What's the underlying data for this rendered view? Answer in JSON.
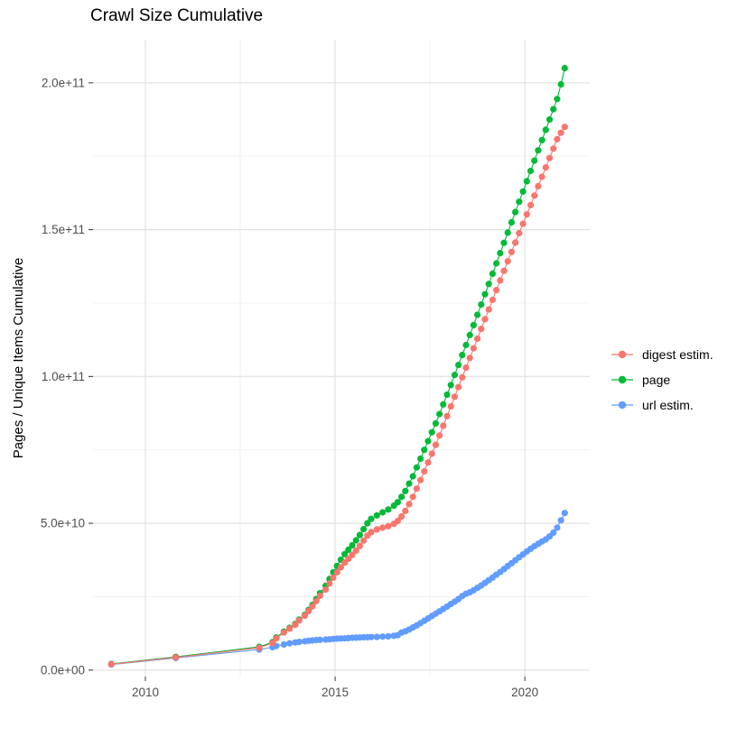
{
  "title": "Crawl Size Cumulative",
  "chart_data": {
    "type": "line",
    "title": "Crawl Size Cumulative",
    "xlabel": "",
    "ylabel": "Pages / Unique Items Cumulative",
    "grid": true,
    "background": "#ffffff",
    "major_grid_color": "#e3e3e3",
    "minor_grid_color": "#f0f0f0",
    "tick_color": "#333333",
    "tick_label_color": "#4d4d4d",
    "xlim": [
      2008.62,
      2021.71
    ],
    "ylim": [
      -2200000000.0,
      214700000000.0
    ],
    "x_ticks": {
      "values": [
        2010,
        2015,
        2020
      ],
      "labels": [
        "2010",
        "2015",
        "2020"
      ]
    },
    "x_minor_ticks": [
      2012.5,
      2017.5
    ],
    "y_ticks": {
      "values": [
        0,
        50000000000.0,
        100000000000.0,
        150000000000.0,
        200000000000.0
      ],
      "labels": [
        "0.0e+00",
        "5.0e+10",
        "1.0e+11",
        "1.5e+11",
        "2.0e+11"
      ]
    },
    "y_minor_ticks": [
      25000000000.0,
      75000000000.0,
      125000000000.0,
      175000000000.0
    ],
    "legend": {
      "position": "right",
      "entries": [
        {
          "label": "digest estim.",
          "color": "#F8766D"
        },
        {
          "label": "page",
          "color": "#00BA38"
        },
        {
          "label": "url estim.",
          "color": "#619CFF"
        }
      ]
    },
    "series": [
      {
        "name": "page",
        "color": "#00BA38",
        "points": [
          [
            2009.1,
            2100000000.0
          ],
          [
            2010.8,
            4500000000.0
          ],
          [
            2013.0,
            7900000000.0
          ],
          [
            2013.35,
            9500000000.0
          ],
          [
            2013.45,
            11100000000.0
          ],
          [
            2013.65,
            13100000000.0
          ],
          [
            2013.8,
            14400000000.0
          ],
          [
            2013.95,
            15700000000.0
          ],
          [
            2014.05,
            17200000000.0
          ],
          [
            2014.2,
            18800000000.0
          ],
          [
            2014.3,
            20500000000.0
          ],
          [
            2014.4,
            22200000000.0
          ],
          [
            2014.5,
            24200000000.0
          ],
          [
            2014.6,
            26200000000.0
          ],
          [
            2014.75,
            28700000000.0
          ],
          [
            2014.85,
            31000000000.0
          ],
          [
            2014.95,
            33300000000.0
          ],
          [
            2015.05,
            35500000000.0
          ],
          [
            2015.15,
            37600000000.0
          ],
          [
            2015.25,
            39500000000.0
          ],
          [
            2015.35,
            41000000000.0
          ],
          [
            2015.45,
            42500000000.0
          ],
          [
            2015.55,
            44200000000.0
          ],
          [
            2015.65,
            46000000000.0
          ],
          [
            2015.75,
            48000000000.0
          ],
          [
            2015.85,
            50000000000.0
          ],
          [
            2015.95,
            51500000000.0
          ],
          [
            2016.1,
            52700000000.0
          ],
          [
            2016.25,
            53700000000.0
          ],
          [
            2016.4,
            54700000000.0
          ],
          [
            2016.55,
            56000000000.0
          ],
          [
            2016.65,
            57200000000.0
          ],
          [
            2016.75,
            59000000000.0
          ],
          [
            2016.85,
            61000000000.0
          ],
          [
            2016.95,
            63500000000.0
          ],
          [
            2017.05,
            66000000000.0
          ],
          [
            2017.15,
            69000000000.0
          ],
          [
            2017.25,
            72000000000.0
          ],
          [
            2017.35,
            75000000000.0
          ],
          [
            2017.45,
            78000000000.0
          ],
          [
            2017.55,
            81000000000.0
          ],
          [
            2017.65,
            84000000000.0
          ],
          [
            2017.75,
            87200000000.0
          ],
          [
            2017.85,
            90500000000.0
          ],
          [
            2017.95,
            93800000000.0
          ],
          [
            2018.05,
            97100000000.0
          ],
          [
            2018.15,
            100500000000.0
          ],
          [
            2018.25,
            103900000000.0
          ],
          [
            2018.35,
            107300000000.0
          ],
          [
            2018.45,
            110700000000.0
          ],
          [
            2018.55,
            114100000000.0
          ],
          [
            2018.65,
            117500000000.0
          ],
          [
            2018.75,
            121000000000.0
          ],
          [
            2018.85,
            124500000000.0
          ],
          [
            2018.95,
            128000000000.0
          ],
          [
            2019.05,
            131500000000.0
          ],
          [
            2019.15,
            135000000000.0
          ],
          [
            2019.25,
            138500000000.0
          ],
          [
            2019.35,
            142000000000.0
          ],
          [
            2019.45,
            145500000000.0
          ],
          [
            2019.55,
            149000000000.0
          ],
          [
            2019.65,
            152500000000.0
          ],
          [
            2019.75,
            156000000000.0
          ],
          [
            2019.85,
            159500000000.0
          ],
          [
            2019.95,
            163000000000.0
          ],
          [
            2020.05,
            166500000000.0
          ],
          [
            2020.15,
            170000000000.0
          ],
          [
            2020.25,
            173500000000.0
          ],
          [
            2020.35,
            177000000000.0
          ],
          [
            2020.45,
            180500000000.0
          ],
          [
            2020.55,
            184000000000.0
          ],
          [
            2020.65,
            187500000000.0
          ],
          [
            2020.75,
            191000000000.0
          ],
          [
            2020.85,
            194500000000.0
          ],
          [
            2020.95,
            199500000000.0
          ],
          [
            2021.05,
            205000000000.0
          ]
        ]
      },
      {
        "name": "url estim.",
        "color": "#619CFF",
        "points": [
          [
            2009.1,
            1900000000.0
          ],
          [
            2010.8,
            4100000000.0
          ],
          [
            2013.0,
            7000000000.0
          ],
          [
            2013.35,
            7800000000.0
          ],
          [
            2013.45,
            8200000000.0
          ],
          [
            2013.65,
            8700000000.0
          ],
          [
            2013.8,
            9100000000.0
          ],
          [
            2013.95,
            9400000000.0
          ],
          [
            2014.05,
            9600000000.0
          ],
          [
            2014.2,
            9800000000.0
          ],
          [
            2014.3,
            10000000000.0
          ],
          [
            2014.4,
            10100000000.0
          ],
          [
            2014.5,
            10200000000.0
          ],
          [
            2014.6,
            10300000000.0
          ],
          [
            2014.75,
            10400000000.0
          ],
          [
            2014.85,
            10500000000.0
          ],
          [
            2014.95,
            10600000000.0
          ],
          [
            2015.05,
            10700000000.0
          ],
          [
            2015.15,
            10750000000.0
          ],
          [
            2015.25,
            10800000000.0
          ],
          [
            2015.35,
            10900000000.0
          ],
          [
            2015.45,
            11000000000.0
          ],
          [
            2015.55,
            11050000000.0
          ],
          [
            2015.65,
            11100000000.0
          ],
          [
            2015.75,
            11150000000.0
          ],
          [
            2015.85,
            11200000000.0
          ],
          [
            2015.95,
            11250000000.0
          ],
          [
            2016.1,
            11300000000.0
          ],
          [
            2016.25,
            11400000000.0
          ],
          [
            2016.4,
            11500000000.0
          ],
          [
            2016.55,
            11700000000.0
          ],
          [
            2016.65,
            11900000000.0
          ],
          [
            2016.75,
            12800000000.0
          ],
          [
            2016.85,
            13200000000.0
          ],
          [
            2016.95,
            13800000000.0
          ],
          [
            2017.05,
            14500000000.0
          ],
          [
            2017.15,
            15200000000.0
          ],
          [
            2017.25,
            16000000000.0
          ],
          [
            2017.35,
            16800000000.0
          ],
          [
            2017.45,
            17600000000.0
          ],
          [
            2017.55,
            18400000000.0
          ],
          [
            2017.65,
            19200000000.0
          ],
          [
            2017.75,
            20000000000.0
          ],
          [
            2017.85,
            20800000000.0
          ],
          [
            2017.95,
            21600000000.0
          ],
          [
            2018.05,
            22500000000.0
          ],
          [
            2018.15,
            23300000000.0
          ],
          [
            2018.25,
            24200000000.0
          ],
          [
            2018.35,
            25200000000.0
          ],
          [
            2018.45,
            26000000000.0
          ],
          [
            2018.55,
            26500000000.0
          ],
          [
            2018.65,
            27200000000.0
          ],
          [
            2018.75,
            28000000000.0
          ],
          [
            2018.85,
            28800000000.0
          ],
          [
            2018.95,
            29700000000.0
          ],
          [
            2019.05,
            30600000000.0
          ],
          [
            2019.15,
            31500000000.0
          ],
          [
            2019.25,
            32500000000.0
          ],
          [
            2019.35,
            33400000000.0
          ],
          [
            2019.45,
            34400000000.0
          ],
          [
            2019.55,
            35400000000.0
          ],
          [
            2019.65,
            36400000000.0
          ],
          [
            2019.75,
            37400000000.0
          ],
          [
            2019.85,
            38400000000.0
          ],
          [
            2019.95,
            39400000000.0
          ],
          [
            2020.05,
            40400000000.0
          ],
          [
            2020.15,
            41300000000.0
          ],
          [
            2020.25,
            42200000000.0
          ],
          [
            2020.35,
            43000000000.0
          ],
          [
            2020.45,
            43800000000.0
          ],
          [
            2020.55,
            44500000000.0
          ],
          [
            2020.65,
            45500000000.0
          ],
          [
            2020.75,
            46800000000.0
          ],
          [
            2020.85,
            48500000000.0
          ],
          [
            2020.95,
            51000000000.0
          ],
          [
            2021.05,
            53500000000.0
          ]
        ]
      },
      {
        "name": "digest estim.",
        "color": "#F8766D",
        "points": [
          [
            2009.1,
            2000000000.0
          ],
          [
            2010.8,
            4300000000.0
          ],
          [
            2013.0,
            7600000000.0
          ],
          [
            2013.35,
            9200000000.0
          ],
          [
            2013.45,
            10800000000.0
          ],
          [
            2013.65,
            12800000000.0
          ],
          [
            2013.8,
            14100000000.0
          ],
          [
            2013.95,
            15400000000.0
          ],
          [
            2014.05,
            16900000000.0
          ],
          [
            2014.2,
            18500000000.0
          ],
          [
            2014.3,
            20100000000.0
          ],
          [
            2014.4,
            21700000000.0
          ],
          [
            2014.5,
            23500000000.0
          ],
          [
            2014.6,
            25300000000.0
          ],
          [
            2014.75,
            27400000000.0
          ],
          [
            2014.85,
            29500000000.0
          ],
          [
            2014.95,
            31500000000.0
          ],
          [
            2015.05,
            33300000000.0
          ],
          [
            2015.15,
            35000000000.0
          ],
          [
            2015.25,
            36600000000.0
          ],
          [
            2015.35,
            37900000000.0
          ],
          [
            2015.45,
            39200000000.0
          ],
          [
            2015.55,
            40700000000.0
          ],
          [
            2015.65,
            42300000000.0
          ],
          [
            2015.75,
            44100000000.0
          ],
          [
            2015.85,
            45800000000.0
          ],
          [
            2015.95,
            47000000000.0
          ],
          [
            2016.1,
            47900000000.0
          ],
          [
            2016.25,
            48500000000.0
          ],
          [
            2016.4,
            49000000000.0
          ],
          [
            2016.55,
            49800000000.0
          ],
          [
            2016.65,
            50800000000.0
          ],
          [
            2016.75,
            52300000000.0
          ],
          [
            2016.85,
            54200000000.0
          ],
          [
            2016.95,
            56500000000.0
          ],
          [
            2017.05,
            59000000000.0
          ],
          [
            2017.15,
            61800000000.0
          ],
          [
            2017.25,
            64700000000.0
          ],
          [
            2017.35,
            67700000000.0
          ],
          [
            2017.45,
            70700000000.0
          ],
          [
            2017.55,
            73700000000.0
          ],
          [
            2017.65,
            76700000000.0
          ],
          [
            2017.75,
            79900000000.0
          ],
          [
            2017.85,
            83200000000.0
          ],
          [
            2017.95,
            86500000000.0
          ],
          [
            2018.05,
            89800000000.0
          ],
          [
            2018.15,
            93100000000.0
          ],
          [
            2018.25,
            96400000000.0
          ],
          [
            2018.35,
            99700000000.0
          ],
          [
            2018.45,
            103000000000.0
          ],
          [
            2018.55,
            106300000000.0
          ],
          [
            2018.65,
            109600000000.0
          ],
          [
            2018.75,
            112900000000.0
          ],
          [
            2018.85,
            116200000000.0
          ],
          [
            2018.95,
            119500000000.0
          ],
          [
            2019.05,
            122800000000.0
          ],
          [
            2019.15,
            126100000000.0
          ],
          [
            2019.25,
            129400000000.0
          ],
          [
            2019.35,
            132700000000.0
          ],
          [
            2019.45,
            136000000000.0
          ],
          [
            2019.55,
            139200000000.0
          ],
          [
            2019.65,
            142400000000.0
          ],
          [
            2019.75,
            145600000000.0
          ],
          [
            2019.85,
            148800000000.0
          ],
          [
            2019.95,
            152000000000.0
          ],
          [
            2020.05,
            155200000000.0
          ],
          [
            2020.15,
            158400000000.0
          ],
          [
            2020.25,
            161600000000.0
          ],
          [
            2020.35,
            164800000000.0
          ],
          [
            2020.45,
            168000000000.0
          ],
          [
            2020.55,
            171200000000.0
          ],
          [
            2020.65,
            174400000000.0
          ],
          [
            2020.75,
            177600000000.0
          ],
          [
            2020.85,
            180800000000.0
          ],
          [
            2020.95,
            183000000000.0
          ],
          [
            2021.05,
            185000000000.0
          ]
        ]
      }
    ]
  }
}
